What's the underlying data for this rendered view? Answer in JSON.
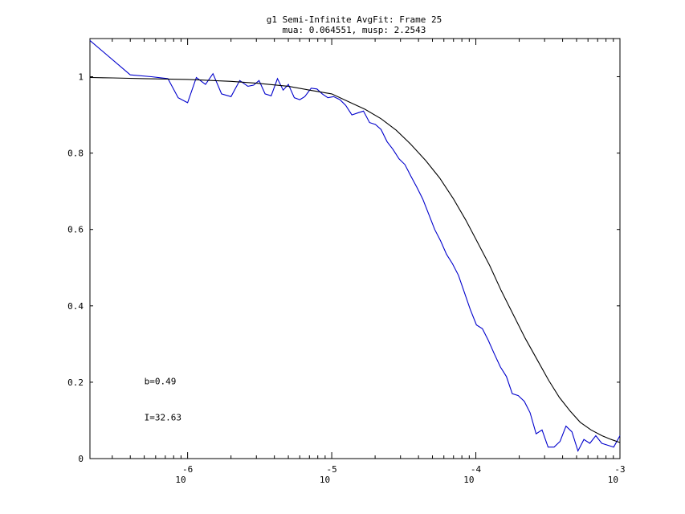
{
  "chart_data": {
    "type": "line",
    "title": "g1 Semi-Infinite AvgFit: Frame 25",
    "subtitle": "mua: 0.064551, musp: 2.2543",
    "xlabel": "",
    "ylabel": "",
    "xscale": "log",
    "xlim": [
      2.1e-07,
      0.001
    ],
    "ylim": [
      0,
      1.1
    ],
    "grid": false,
    "x_ticks": [
      {
        "value": 1e-06,
        "base": "10",
        "exp": "-6"
      },
      {
        "value": 1e-05,
        "base": "10",
        "exp": "-5"
      },
      {
        "value": 0.0001,
        "base": "10",
        "exp": "-4"
      },
      {
        "value": 0.001,
        "base": "10",
        "exp": "-3"
      }
    ],
    "y_ticks": [
      {
        "value": 0,
        "label": "0"
      },
      {
        "value": 0.2,
        "label": "0.2"
      },
      {
        "value": 0.4,
        "label": "0.4"
      },
      {
        "value": 0.6,
        "label": "0.6"
      },
      {
        "value": 0.8,
        "label": "0.8"
      },
      {
        "value": 1,
        "label": "1"
      }
    ],
    "annotations": [
      {
        "text": "b=0.49",
        "x": 5e-07,
        "y": 0.195
      },
      {
        "text": "I=32.63",
        "x": 5e-07,
        "y": 0.1
      }
    ],
    "series": [
      {
        "color": "#0000cc",
        "x": [
          2.1e-07,
          4e-07,
          5.6e-07,
          7.3e-07,
          8.6e-07,
          1e-06,
          1.15e-06,
          1.33e-06,
          1.5e-06,
          1.72e-06,
          2e-06,
          2.3e-06,
          2.62e-06,
          2.87e-06,
          3.13e-06,
          3.45e-06,
          3.8e-06,
          4.2e-06,
          4.6e-06,
          5e-06,
          5.5e-06,
          6e-06,
          6.5e-06,
          7.2e-06,
          7.9e-06,
          8.6e-06,
          9.4e-06,
          1.03e-05,
          1.14e-05,
          1.25e-05,
          1.38e-05,
          1.51e-05,
          1.66e-05,
          1.83e-05,
          2.01e-05,
          2.2e-05,
          2.42e-05,
          2.66e-05,
          2.93e-05,
          3.22e-05,
          3.54e-05,
          3.9e-05,
          4.28e-05,
          4.71e-05,
          5.18e-05,
          5.7e-05,
          6.26e-05,
          6.89e-05,
          7.58e-05,
          8.33e-05,
          9.16e-05,
          0.000101,
          0.000111,
          0.000122,
          0.000134,
          0.000148,
          0.000163,
          0.000179,
          0.000197,
          0.000217,
          0.000238,
          0.000262,
          0.000288,
          0.000317,
          0.000349,
          0.000384,
          0.000422,
          0.000464,
          0.000511,
          0.000562,
          0.000618,
          0.00068,
          0.000748,
          0.000823,
          0.000905,
          0.001
        ],
        "y": [
          1.095,
          1.005,
          1.0,
          0.995,
          0.945,
          0.932,
          0.998,
          0.98,
          1.008,
          0.955,
          0.948,
          0.99,
          0.975,
          0.978,
          0.99,
          0.955,
          0.95,
          0.995,
          0.965,
          0.98,
          0.945,
          0.94,
          0.948,
          0.97,
          0.968,
          0.955,
          0.945,
          0.948,
          0.94,
          0.925,
          0.9,
          0.905,
          0.91,
          0.88,
          0.875,
          0.862,
          0.83,
          0.81,
          0.785,
          0.77,
          0.74,
          0.71,
          0.68,
          0.64,
          0.6,
          0.57,
          0.535,
          0.51,
          0.48,
          0.435,
          0.39,
          0.35,
          0.34,
          0.31,
          0.275,
          0.24,
          0.215,
          0.17,
          0.165,
          0.15,
          0.12,
          0.065,
          0.075,
          0.03,
          0.03,
          0.045,
          0.085,
          0.07,
          0.02,
          0.05,
          0.04,
          0.06,
          0.04,
          0.035,
          0.03,
          0.06
        ]
      },
      {
        "color": "#000000",
        "x": [
          2.1e-07,
          3e-07,
          5e-07,
          1e-06,
          2e-06,
          3e-06,
          5e-06,
          7e-06,
          1e-05,
          1.3e-05,
          1.7e-05,
          2.2e-05,
          2.8e-05,
          3.5e-05,
          4.5e-05,
          5.6e-05,
          7e-05,
          8.5e-05,
          0.0001,
          0.000125,
          0.00015,
          0.00018,
          0.00022,
          0.00027,
          0.00032,
          0.00038,
          0.00045,
          0.00053,
          0.00063,
          0.00075,
          0.00087,
          0.001
        ],
        "y": [
          0.998,
          0.997,
          0.995,
          0.993,
          0.988,
          0.983,
          0.975,
          0.965,
          0.955,
          0.935,
          0.915,
          0.89,
          0.86,
          0.825,
          0.78,
          0.735,
          0.68,
          0.625,
          0.575,
          0.505,
          0.44,
          0.38,
          0.315,
          0.255,
          0.205,
          0.16,
          0.125,
          0.095,
          0.075,
          0.06,
          0.05,
          0.042
        ]
      }
    ]
  }
}
